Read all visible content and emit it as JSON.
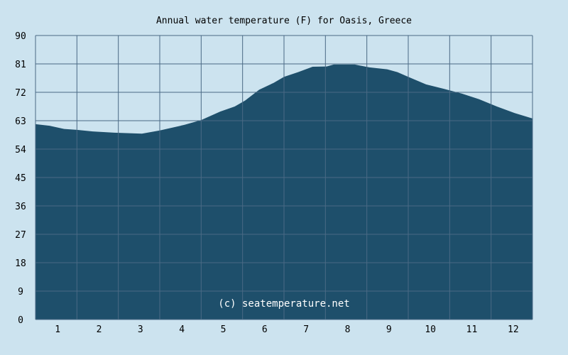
{
  "chart_data": {
    "type": "area",
    "title": "Annual water temperature (F) for Oasis, Greece",
    "annotation": "(c) seatemperature.net",
    "xlabel": "",
    "ylabel": "",
    "xlim": [
      0.5,
      12.5
    ],
    "ylim": [
      0,
      90
    ],
    "x_ticks": [
      1,
      2,
      3,
      4,
      5,
      6,
      7,
      8,
      9,
      10,
      11,
      12
    ],
    "y_ticks": [
      0,
      9,
      18,
      27,
      36,
      45,
      54,
      63,
      72,
      81,
      90
    ],
    "grid": true,
    "colors": {
      "fill": "#1e4f6b",
      "background": "#cce3ef",
      "grid": "#4a6a85"
    },
    "series": [
      {
        "x": [
          0.5,
          0.84,
          1.19,
          1.5,
          1.88,
          2.4,
          3.07,
          3.5,
          4.1,
          4.5,
          4.96,
          5.31,
          5.56,
          5.9,
          6.25,
          6.5,
          6.84,
          7.19,
          7.53,
          7.7,
          8.21,
          8.56,
          8.99,
          9.24,
          9.5,
          9.93,
          10.36,
          10.79,
          11.21,
          11.64,
          12.07,
          12.5
        ],
        "y": [
          61.9,
          61.4,
          60.4,
          60.1,
          59.6,
          59.2,
          58.9,
          59.9,
          61.7,
          63.2,
          65.9,
          67.5,
          69.4,
          72.8,
          75.0,
          76.9,
          78.4,
          80.1,
          80.2,
          80.8,
          80.8,
          79.9,
          79.3,
          78.4,
          76.9,
          74.5,
          73.1,
          71.6,
          69.8,
          67.5,
          65.4,
          63.7
        ]
      }
    ]
  }
}
